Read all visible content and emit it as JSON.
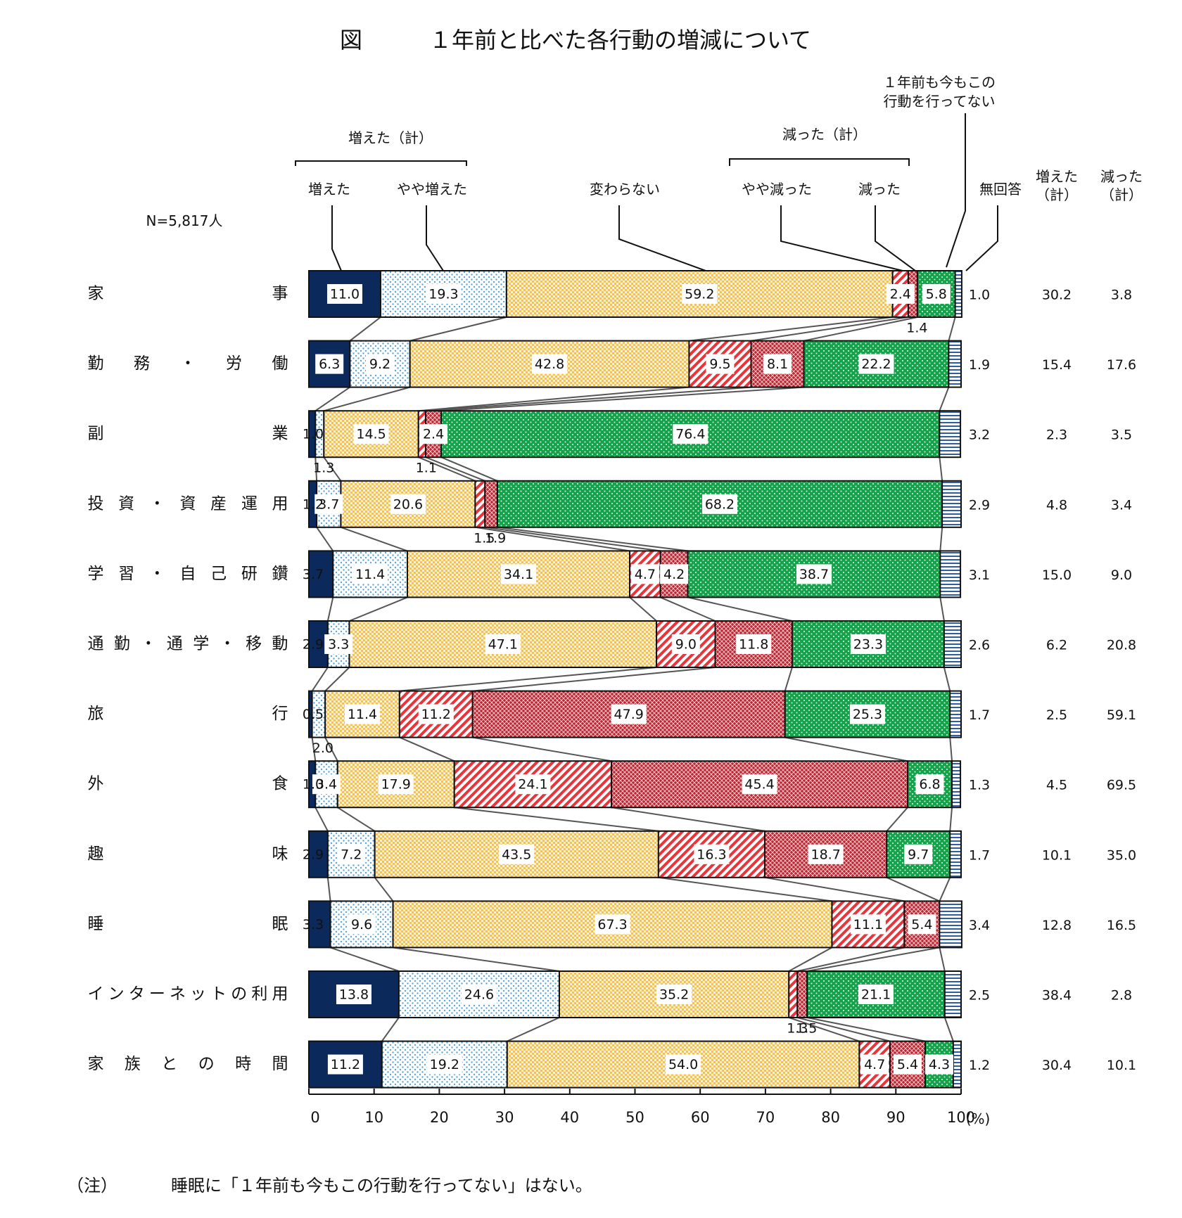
{
  "chart_data": {
    "type": "bar",
    "title_prefix": "図",
    "title": "１年前と比べた各行動の増減について",
    "sample_note": "N=5,817人",
    "groups": {
      "increase_total": "増えた（計）",
      "decrease_total": "減った（計）",
      "never_line1": "１年前も今もこの",
      "never_line2": "行動を行ってない"
    },
    "series": [
      {
        "name": "増えた",
        "color": "#0b2a5b"
      },
      {
        "name": "やや増えた",
        "color": "#bfdff2"
      },
      {
        "name": "変わらない",
        "color": "#f7c24a"
      },
      {
        "name": "やや減った",
        "color": "#e8343a"
      },
      {
        "name": "減った",
        "color": "#c02631"
      },
      {
        "name": "１年前も今もこの行動を行ってない",
        "color": "#14a24a"
      },
      {
        "name": "無回答",
        "color": "#2e5da3"
      }
    ],
    "summary_headers": [
      {
        "line1": "増えた",
        "line2": "（計）"
      },
      {
        "line1": "減った",
        "line2": "（計）"
      }
    ],
    "categories": [
      "家事",
      "勤務・労働",
      "副業",
      "投資・資産運用",
      "学習・自己研鑽",
      "通勤・通学・移動",
      "旅行",
      "外食",
      "趣味",
      "睡眠",
      "インターネットの利用",
      "家族との時間"
    ],
    "rows": [
      {
        "label": "家事",
        "values": [
          11.0,
          19.3,
          59.2,
          2.4,
          1.4,
          5.8,
          1.0
        ],
        "labels": [
          "11.0",
          "19.3",
          "59.2",
          "2.4",
          "1.4",
          "5.8",
          "1.0"
        ],
        "inc_total": "30.2",
        "dec_total": "3.8"
      },
      {
        "label": "勤務・労働",
        "values": [
          6.3,
          9.2,
          42.8,
          9.5,
          8.1,
          22.2,
          1.9
        ],
        "labels": [
          "6.3",
          "9.2",
          "42.8",
          "9.5",
          "8.1",
          "22.2",
          "1.9"
        ],
        "inc_total": "15.4",
        "dec_total": "17.6"
      },
      {
        "label": "副業",
        "values": [
          1.0,
          1.3,
          14.5,
          1.1,
          2.4,
          76.4,
          3.2
        ],
        "labels": [
          "1.0",
          "1.3",
          "14.5",
          "1.1",
          "2.4",
          "76.4",
          "3.2"
        ],
        "inc_total": "2.3",
        "dec_total": "3.5"
      },
      {
        "label": "投資・資産運用",
        "values": [
          1.2,
          3.7,
          20.6,
          1.5,
          1.9,
          68.2,
          2.9
        ],
        "labels": [
          "1.2",
          "3.7",
          "20.6",
          "1.5",
          "1.9",
          "68.2",
          "2.9"
        ],
        "inc_total": "4.8",
        "dec_total": "3.4"
      },
      {
        "label": "学習・自己研鑽",
        "values": [
          3.7,
          11.4,
          34.1,
          4.7,
          4.2,
          38.7,
          3.1
        ],
        "labels": [
          "3.7",
          "11.4",
          "34.1",
          "4.7",
          "4.2",
          "38.7",
          "3.1"
        ],
        "inc_total": "15.0",
        "dec_total": "9.0"
      },
      {
        "label": "通勤・通学・移動",
        "values": [
          2.9,
          3.3,
          47.1,
          9.0,
          11.8,
          23.3,
          2.6
        ],
        "labels": [
          "2.9",
          "3.3",
          "47.1",
          "9.0",
          "11.8",
          "23.3",
          "2.6"
        ],
        "inc_total": "6.2",
        "dec_total": "20.8"
      },
      {
        "label": "旅行",
        "values": [
          0.5,
          2.0,
          11.4,
          11.2,
          47.9,
          25.3,
          1.7
        ],
        "labels": [
          "0.5",
          "2.0",
          "11.4",
          "11.2",
          "47.9",
          "25.3",
          "1.7"
        ],
        "inc_total": "2.5",
        "dec_total": "59.1"
      },
      {
        "label": "外食",
        "values": [
          1.0,
          3.4,
          17.9,
          24.1,
          45.4,
          6.8,
          1.3
        ],
        "labels": [
          "1.0",
          "3.4",
          "17.9",
          "24.1",
          "45.4",
          "6.8",
          "1.3"
        ],
        "inc_total": "4.5",
        "dec_total": "69.5"
      },
      {
        "label": "趣味",
        "values": [
          2.9,
          7.2,
          43.5,
          16.3,
          18.7,
          9.7,
          1.7
        ],
        "labels": [
          "2.9",
          "7.2",
          "43.5",
          "16.3",
          "18.7",
          "9.7",
          "1.7"
        ],
        "inc_total": "10.1",
        "dec_total": "35.0"
      },
      {
        "label": "睡眠",
        "values": [
          3.3,
          9.6,
          67.3,
          11.1,
          5.4,
          0,
          3.4
        ],
        "labels": [
          "3.3",
          "9.6",
          "67.3",
          "11.1",
          "5.4",
          "",
          "3.4"
        ],
        "inc_total": "12.8",
        "dec_total": "16.5"
      },
      {
        "label": "インターネットの利用",
        "values": [
          13.8,
          24.6,
          35.2,
          1.3,
          1.5,
          21.1,
          2.5
        ],
        "labels": [
          "13.8",
          "24.6",
          "35.2",
          "1.3",
          "1.5",
          "21.1",
          "2.5"
        ],
        "inc_total": "38.4",
        "dec_total": "2.8"
      },
      {
        "label": "家族との時間",
        "values": [
          11.2,
          19.2,
          54.0,
          4.7,
          5.4,
          4.3,
          1.2
        ],
        "labels": [
          "11.2",
          "19.2",
          "54.0",
          "4.7",
          "5.4",
          "4.3",
          "1.2"
        ],
        "inc_total": "30.4",
        "dec_total": "10.1"
      }
    ],
    "x_ticks": [
      0,
      10,
      20,
      30,
      40,
      50,
      60,
      70,
      80,
      90,
      100
    ],
    "x_unit": "(%)",
    "xlim": [
      0,
      100
    ],
    "note_label": "（注）",
    "note_text": "睡眠に「１年前も今もこの行動を行ってない」はない。"
  }
}
